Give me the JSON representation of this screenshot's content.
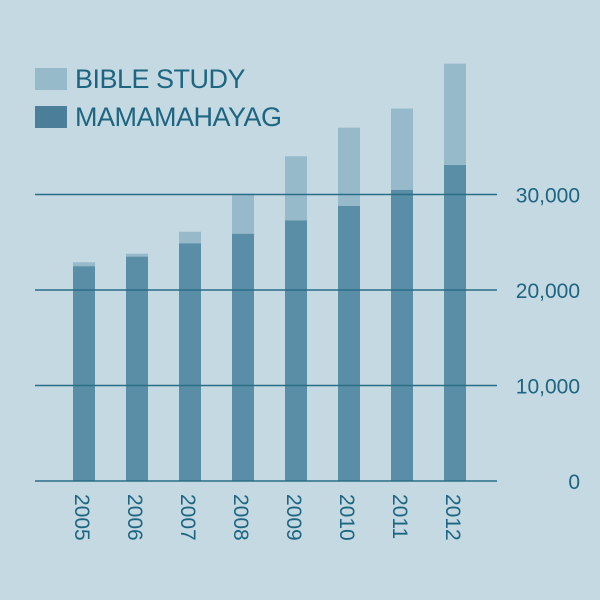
{
  "chart_data": {
    "type": "bar",
    "stacked": true,
    "title": "",
    "xlabel": "",
    "ylabel": "",
    "categories": [
      "2005",
      "2006",
      "2007",
      "2008",
      "2009",
      "2010",
      "2011",
      "2012"
    ],
    "series": [
      {
        "name": "MAMAMAHAYAG",
        "color": "#5a8ea6",
        "values": [
          22500,
          23500,
          24900,
          25900,
          27300,
          28800,
          30500,
          33100
        ]
      },
      {
        "name": "BIBLE STUDY",
        "color": "#97bacb",
        "values": [
          400,
          300,
          1200,
          4200,
          6700,
          8200,
          8500,
          10600
        ]
      }
    ],
    "ylim": [
      0,
      45000
    ],
    "yticks": [
      0,
      10000,
      20000,
      30000
    ],
    "ytick_labels": [
      "0",
      "10,000",
      "20,000",
      "30,000"
    ],
    "grid": true,
    "legend_position": "top-left",
    "legend": [
      {
        "label": "BIBLE STUDY",
        "color": "#97bacb"
      },
      {
        "label": "MAMAMAHAYAG",
        "color": "#4b7f99"
      }
    ]
  }
}
